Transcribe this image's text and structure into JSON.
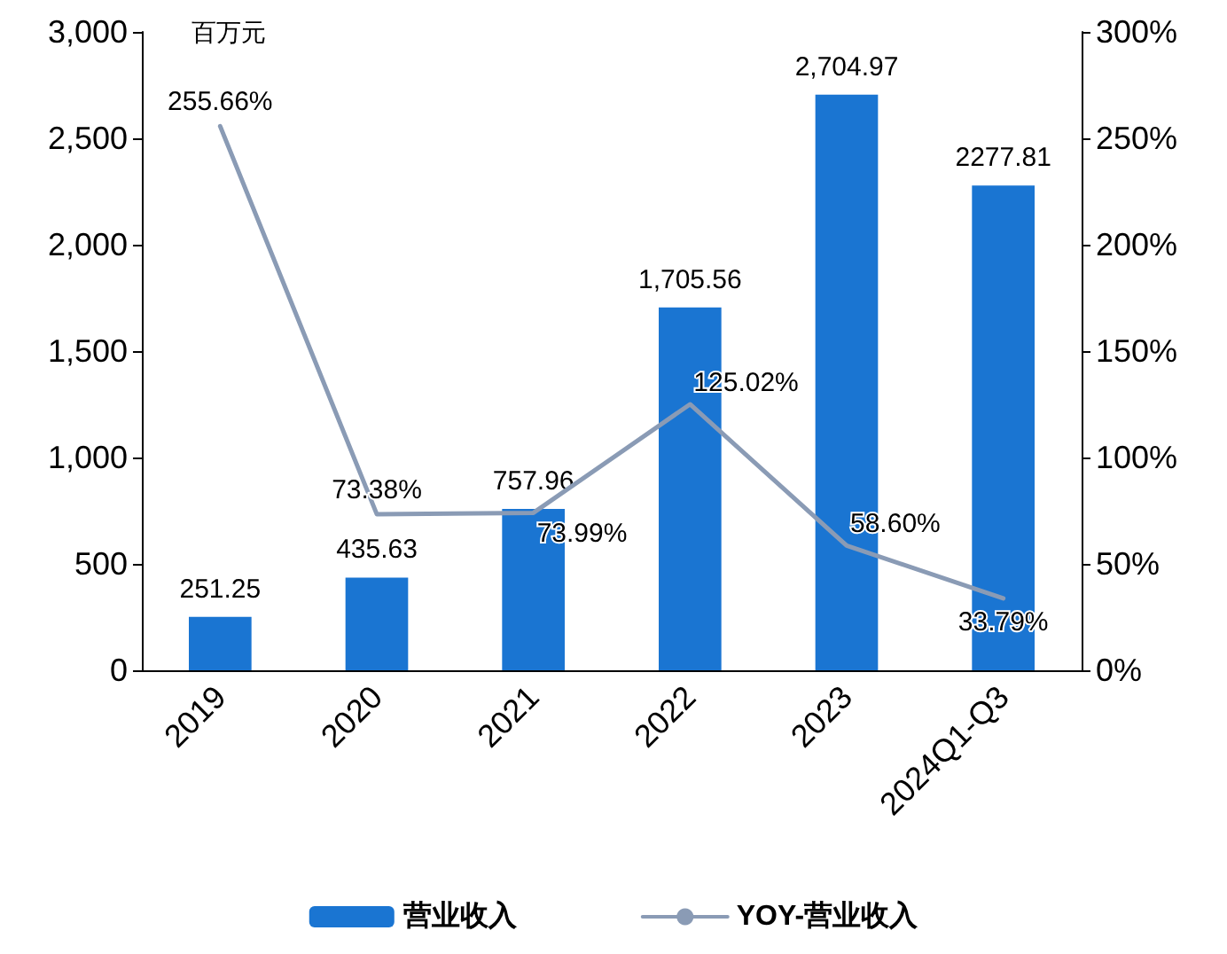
{
  "chart_data": {
    "type": "bar",
    "categories": [
      "2019",
      "2020",
      "2021",
      "2022",
      "2023",
      "2024Q1-Q3"
    ],
    "series": [
      {
        "name": "营业收入",
        "color": "#1a75d2",
        "values": [
          251.25,
          435.63,
          757.96,
          1705.56,
          2704.97,
          2277.81
        ],
        "value_labels": [
          "251.25",
          "435.63",
          "757.96",
          "1,705.56",
          "2,704.97",
          "2277.81"
        ]
      },
      {
        "name": "YOY-营业收入",
        "type": "line",
        "axis": "y2",
        "color": "#8a9bb5",
        "values": [
          255.66,
          73.38,
          73.99,
          125.02,
          58.6,
          33.79
        ],
        "value_labels": [
          "255.66%",
          "73.38%",
          "73.99%",
          "125.02%",
          "58.60%",
          "33.79%"
        ],
        "marker": "none",
        "line_style": "solid"
      }
    ],
    "ylim": [
      0,
      3000
    ],
    "yticks": [
      0,
      500,
      {
        "value": 1000,
        "label": "1,000"
      },
      {
        "value": 1500,
        "label": "1,500"
      },
      {
        "value": 2000,
        "label": "2,000"
      },
      {
        "value": 2500,
        "label": "2,500"
      },
      {
        "value": 3000,
        "label": "3,000"
      }
    ],
    "y2lim": [
      0,
      300
    ],
    "y2ticks": [
      {
        "value": 0,
        "label": "0%"
      },
      {
        "value": 50,
        "label": "50%"
      },
      {
        "value": 100,
        "label": "100%"
      },
      {
        "value": 150,
        "label": "150%"
      },
      {
        "value": 200,
        "label": "200%"
      },
      {
        "value": 250,
        "label": "250%"
      },
      {
        "value": 300,
        "label": "300%"
      }
    ],
    "annotations": [
      "百万元"
    ],
    "grid": false,
    "legend": "bottom"
  }
}
